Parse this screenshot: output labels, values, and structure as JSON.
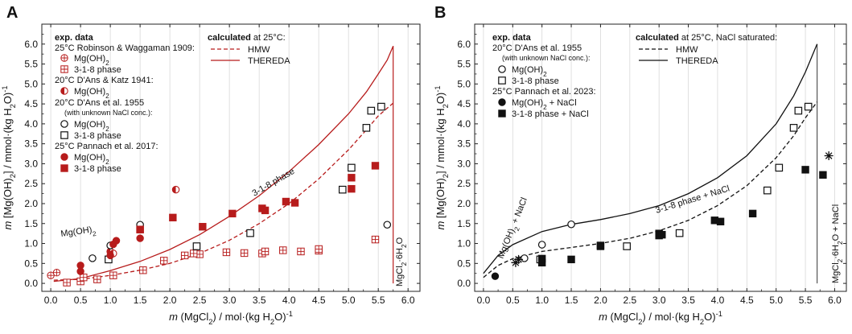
{
  "chart_data": [
    {
      "panel": "A",
      "type": "scatter",
      "xlabel_pre": "m",
      "xlabel_main": " (MgCl",
      "xlabel_sub": "2",
      "xlabel_end": ") / mol·(kg H",
      "xlabel_sub2": "2",
      "xlabel_end2": "O)",
      "xlabel_sup": "-1",
      "ylabel": "m [Mg(OH)2] / mmol·(kg H2O)-1",
      "xlim": [
        -0.15,
        6.2
      ],
      "ylim": [
        -0.2,
        6.5
      ],
      "xticks": [
        0.0,
        0.5,
        1.0,
        1.5,
        2.0,
        2.5,
        3.0,
        3.5,
        4.0,
        4.5,
        5.0,
        5.5,
        6.0
      ],
      "yticks": [
        0.0,
        0.5,
        1.0,
        1.5,
        2.0,
        2.5,
        3.0,
        3.5,
        4.0,
        4.5,
        5.0,
        5.5,
        6.0
      ],
      "legend_exp": {
        "heading": "exp. data",
        "g1": "25°C Robinson & Waggaman 1909:",
        "g1a": "Mg(OH)2",
        "g1b": "3-1-8 phase",
        "g2": "20°C D'Ans & Katz 1941:",
        "g2a": "Mg(OH)2",
        "g3": "20°C D'Ans et al. 1955",
        "g3note": "(with unknown NaCl conc.):",
        "g3a": "Mg(OH)2",
        "g3b": "3-1-8 phase",
        "g4": "25°C Pannach et al. 2017:",
        "g4a": "Mg(OH)2",
        "g4b": "3-1-8 phase"
      },
      "legend_calc": {
        "heading_b": "calculated",
        "heading_rest": " at 25°C:",
        "hmw": "HMW",
        "thereda": "THEREDA"
      },
      "annotations": {
        "mgoh2": "Mg(OH)2",
        "phase318": "3-1-8 phase",
        "mgcl2": "MgCl2·6H2O"
      },
      "series": [
        {
          "name": "Robinson & Waggaman 1909 Mg(OH)2",
          "marker": "crossed-circle",
          "color": "#b71c1c",
          "x": [
            0.0,
            0.1
          ],
          "y": [
            0.2,
            0.27
          ]
        },
        {
          "name": "Robinson & Waggaman 1909 3-1-8 phase",
          "marker": "crossed-square",
          "color": "#b71c1c",
          "x": [
            0.27,
            0.5,
            0.78,
            1.05,
            1.55,
            1.9,
            2.25,
            2.5,
            2.95,
            3.25,
            3.55,
            3.9,
            4.2,
            4.5,
            5.45,
            0.55,
            2.4,
            3.6,
            4.5
          ],
          "y": [
            0.02,
            0.05,
            0.1,
            0.2,
            0.33,
            0.57,
            0.7,
            0.73,
            0.78,
            0.76,
            0.75,
            0.83,
            0.8,
            0.82,
            1.1,
            0.15,
            0.75,
            0.8,
            0.86
          ]
        },
        {
          "name": "D'Ans & Katz 1941 Mg(OH)2",
          "marker": "half-circle",
          "color": "#b71c1c",
          "x": [
            1.0,
            1.05,
            2.1
          ],
          "y": [
            0.8,
            0.75,
            2.35
          ]
        },
        {
          "name": "D'Ans et al. 1955 Mg(OH)2",
          "marker": "open-circle",
          "color": "#111111",
          "x": [
            0.7,
            1.0,
            1.5,
            5.65
          ],
          "y": [
            0.63,
            0.95,
            1.47,
            1.47
          ]
        },
        {
          "name": "D'Ans et al. 1955 3-1-8 phase",
          "marker": "open-square",
          "color": "#111111",
          "x": [
            0.97,
            2.45,
            3.35,
            4.9,
            5.05,
            5.3,
            5.55,
            5.38
          ],
          "y": [
            0.6,
            0.93,
            1.26,
            2.35,
            2.9,
            3.9,
            4.43,
            4.33
          ]
        },
        {
          "name": "Pannach et al. 2017 Mg(OH)2",
          "marker": "filled-circle",
          "color": "#b71c1c",
          "x": [
            0.5,
            0.5,
            1.0,
            1.05,
            1.1,
            1.5
          ],
          "y": [
            0.3,
            0.45,
            0.7,
            0.98,
            1.07,
            1.13
          ]
        },
        {
          "name": "Pannach et al. 2017 3-1-8 phase",
          "marker": "filled-square",
          "color": "#b71c1c",
          "x": [
            1.5,
            2.05,
            2.55,
            3.05,
            3.55,
            3.6,
            3.95,
            4.1,
            5.05,
            5.05,
            5.45,
            1.5
          ],
          "y": [
            1.35,
            1.65,
            1.42,
            1.75,
            1.88,
            1.83,
            2.05,
            2.02,
            2.65,
            2.37,
            2.95,
            1.35
          ]
        },
        {
          "name": "HMW",
          "style": "dashed",
          "color": "#b71c1c",
          "x": [
            0.05,
            0.5,
            1.0,
            1.5,
            2.0,
            2.5,
            3.0,
            3.5,
            4.0,
            4.5,
            5.0,
            5.3,
            5.5,
            5.75
          ],
          "y": [
            0.08,
            0.1,
            0.2,
            0.33,
            0.5,
            0.75,
            1.08,
            1.5,
            2.0,
            2.62,
            3.35,
            3.85,
            4.2,
            4.52
          ]
        },
        {
          "name": "THEREDA",
          "style": "solid",
          "color": "#b71c1c",
          "x": [
            0.05,
            0.5,
            1.0,
            1.5,
            2.0,
            2.5,
            3.0,
            3.5,
            4.0,
            4.5,
            5.0,
            5.3,
            5.5,
            5.65,
            5.75
          ],
          "y": [
            0.05,
            0.12,
            0.32,
            0.55,
            0.85,
            1.22,
            1.68,
            2.2,
            2.8,
            3.48,
            4.25,
            4.8,
            5.25,
            5.6,
            5.95
          ]
        }
      ],
      "vline_x": 5.75
    },
    {
      "panel": "B",
      "type": "scatter",
      "xlim": [
        -0.15,
        6.2
      ],
      "ylim": [
        -0.2,
        6.5
      ],
      "xticks": [
        0.0,
        0.5,
        1.0,
        1.5,
        2.0,
        2.5,
        3.0,
        3.5,
        4.0,
        4.5,
        5.0,
        5.5,
        6.0
      ],
      "yticks": [
        0.0,
        0.5,
        1.0,
        1.5,
        2.0,
        2.5,
        3.0,
        3.5,
        4.0,
        4.5,
        5.0,
        5.5,
        6.0
      ],
      "legend_exp": {
        "heading": "exp. data",
        "g1": "20°C D'Ans et al. 1955",
        "g1note": "(with unknown NaCl conc.):",
        "g1a": "Mg(OH)2",
        "g1b": "3-1-8 phase",
        "g2": "25°C Pannach et al. 2023:",
        "g2a": "Mg(OH)2 + NaCl",
        "g2b": "3-1-8 phase + NaCl"
      },
      "legend_calc": {
        "heading_b": "calculated",
        "heading_rest": " at 25°C, NaCl saturated:",
        "hmw": "HMW",
        "thereda": "THEREDA"
      },
      "annotations": {
        "mgoh2": "Mg(OH)2 + NaCl",
        "phase318": "3-1-8 phase + NaCl",
        "mgcl2": "MgCl2·6H2O + NaCl"
      },
      "series": [
        {
          "name": "D'Ans et al. 1955 Mg(OH)2",
          "marker": "open-circle",
          "color": "#111111",
          "x": [
            0.7,
            1.0,
            1.5
          ],
          "y": [
            0.63,
            0.97,
            1.48
          ]
        },
        {
          "name": "D'Ans et al. 1955 3-1-8 phase",
          "marker": "open-square",
          "color": "#111111",
          "x": [
            0.97,
            2.45,
            3.35,
            4.85,
            5.05,
            5.3,
            5.38,
            5.55
          ],
          "y": [
            0.6,
            0.93,
            1.26,
            2.33,
            2.9,
            3.9,
            4.33,
            4.43
          ]
        },
        {
          "name": "Pannach et al. 2023 Mg(OH)2 + NaCl",
          "marker": "filled-circle",
          "color": "#111111",
          "x": [
            0.2
          ],
          "y": [
            0.18
          ]
        },
        {
          "name": "Pannach et al. 2023 3-1-8 phase + NaCl",
          "marker": "filled-square",
          "color": "#111111",
          "x": [
            1.0,
            1.0,
            1.5,
            2.0,
            2.0,
            3.0,
            3.0,
            3.05,
            3.95,
            4.05,
            4.6,
            5.5,
            5.8
          ],
          "y": [
            0.52,
            0.62,
            0.6,
            0.95,
            0.93,
            1.25,
            1.2,
            1.22,
            1.58,
            1.55,
            1.75,
            2.85,
            2.72
          ]
        },
        {
          "name": "asterisk",
          "marker": "asterisk",
          "color": "#111111",
          "x": [
            0.55,
            0.6,
            5.9
          ],
          "y": [
            0.52,
            0.6,
            3.2
          ]
        },
        {
          "name": "HMW",
          "style": "dashed",
          "color": "#111111",
          "x": [
            0.0,
            0.25,
            0.5,
            1.0,
            1.5,
            2.0,
            2.5,
            3.0,
            3.5,
            4.0,
            4.5,
            5.0,
            5.3,
            5.5,
            5.7
          ],
          "y": [
            0.15,
            0.45,
            0.62,
            0.8,
            0.9,
            1.0,
            1.13,
            1.32,
            1.58,
            1.95,
            2.45,
            3.15,
            3.7,
            4.15,
            4.55
          ]
        },
        {
          "name": "THEREDA",
          "style": "solid",
          "color": "#111111",
          "x": [
            0.0,
            0.25,
            0.5,
            1.0,
            1.5,
            2.0,
            2.5,
            3.0,
            3.5,
            4.0,
            4.5,
            5.0,
            5.3,
            5.5,
            5.7
          ],
          "y": [
            0.25,
            0.7,
            0.97,
            1.3,
            1.48,
            1.6,
            1.75,
            1.95,
            2.25,
            2.65,
            3.2,
            4.0,
            4.7,
            5.3,
            6.0
          ]
        }
      ],
      "vline_x": 5.7
    }
  ]
}
